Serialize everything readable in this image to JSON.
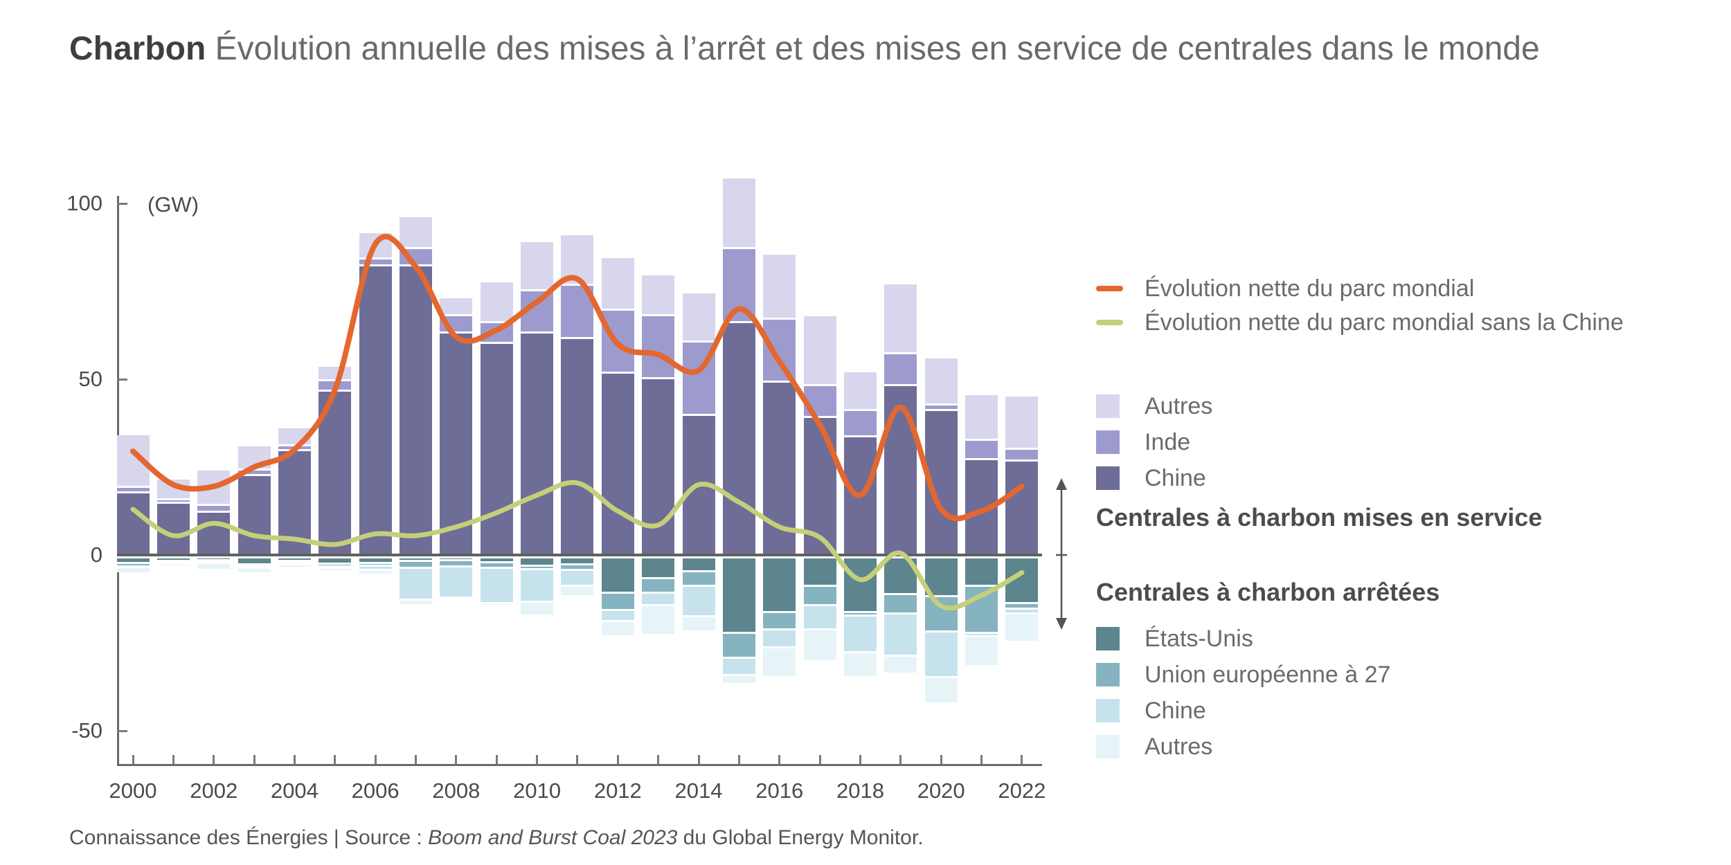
{
  "title": {
    "bold": "Charbon",
    "rest": " Évolution annuelle des mises à l’arrêt et des mises en service de centrales dans le monde"
  },
  "axis": {
    "unit_label": "(GW)",
    "y_ticks": [
      100,
      50,
      0,
      -50
    ],
    "x_label_years": [
      2000,
      2002,
      2004,
      2006,
      2008,
      2010,
      2012,
      2014,
      2016,
      2018,
      2020,
      2022
    ]
  },
  "legend_lines": [
    {
      "label": "Évolution nette du parc mondial",
      "color": "#e4672f"
    },
    {
      "label": "Évolution nette du parc mondial sans la Chine",
      "color": "#c5cf79"
    }
  ],
  "legend_service": {
    "heading": "Centrales à charbon mises en service",
    "items": [
      {
        "label": "Autres",
        "color": "#d7d6ed"
      },
      {
        "label": "Inde",
        "color": "#9d9bce"
      },
      {
        "label": "Chine",
        "color": "#6e6d97"
      }
    ]
  },
  "legend_arret": {
    "heading": "Centrales à charbon arrêtées",
    "items": [
      {
        "label": "États-Unis",
        "color": "#5c858e"
      },
      {
        "label": "Union européenne à 27",
        "color": "#85b3bf"
      },
      {
        "label": "Chine",
        "color": "#c6e3ed"
      },
      {
        "label": "Autres",
        "color": "#e6f4f8"
      }
    ]
  },
  "footer": {
    "prefix": "Connaissance des Énergies | Source : ",
    "source_italic": "Boom and Burst Coal 2023",
    "suffix": " du Global Energy Monitor."
  },
  "colors": {
    "service_chine": "#6e6d97",
    "service_inde": "#9d9bce",
    "service_autres": "#d7d6ed",
    "arret_etats_unis": "#5c858e",
    "arret_ue": "#85b3bf",
    "arret_chine": "#c6e3ed",
    "arret_autres": "#e6f4f8",
    "line_net_mondial": "#e4672f",
    "line_net_sans_chine": "#c5cf79",
    "zero_line": "#606060",
    "axis": "#6a6a6a",
    "arrow": "#555555"
  },
  "chart_data": {
    "type": "bar",
    "subtype": "stacked-diverging-with-lines",
    "unit": "GW",
    "ylim": [
      -60,
      110
    ],
    "years": [
      2000,
      2001,
      2002,
      2003,
      2004,
      2005,
      2006,
      2007,
      2008,
      2009,
      2010,
      2011,
      2012,
      2013,
      2014,
      2015,
      2016,
      2017,
      2018,
      2019,
      2020,
      2021,
      2022
    ],
    "series": [
      {
        "name": "Chine (mises en service)",
        "key": "service_chine",
        "stack": "positive",
        "values": [
          17.5,
          14.5,
          12,
          22.5,
          29.5,
          46.5,
          82,
          82,
          63,
          60,
          63,
          61.5,
          51.5,
          50,
          39.5,
          66,
          49,
          39,
          33.5,
          48,
          41,
          27,
          26.5
        ]
      },
      {
        "name": "Inde (mises en service)",
        "key": "service_inde",
        "stack": "positive",
        "values": [
          1.5,
          1,
          2,
          1.5,
          1.5,
          3,
          2,
          5,
          5,
          6,
          12,
          15,
          18,
          18,
          21,
          21,
          18,
          9,
          7.5,
          9,
          1.5,
          5.5,
          3.5
        ]
      },
      {
        "name": "Autres (mises en service)",
        "key": "service_autres",
        "stack": "positive",
        "values": [
          15,
          6,
          10,
          7,
          5,
          4,
          7.5,
          9,
          5,
          11.5,
          14,
          14.5,
          15,
          11.5,
          14,
          20,
          18.5,
          20,
          11,
          20,
          13.5,
          13,
          15
        ]
      },
      {
        "name": "États-Unis (arrêtées)",
        "key": "arret_etats_unis",
        "stack": "negative",
        "values": [
          1.5,
          1,
          0.8,
          2,
          1,
          1.8,
          1.5,
          1,
          0.8,
          1.3,
          2.4,
          2,
          10,
          6,
          4,
          21.5,
          15.5,
          8,
          15.5,
          10.5,
          11,
          8,
          13
        ]
      },
      {
        "name": "Union européenne à 27 (arrêtées)",
        "key": "arret_ue",
        "stack": "negative",
        "values": [
          1,
          0.4,
          0.4,
          0.6,
          0.6,
          0.8,
          0.8,
          2,
          1.7,
          1.7,
          1,
          1.5,
          5,
          4,
          4,
          7,
          5,
          5.5,
          1,
          5.5,
          10,
          13.5,
          1.5
        ]
      },
      {
        "name": "Chine (arrêtées)",
        "key": "arret_chine",
        "stack": "negative",
        "values": [
          0.3,
          0.3,
          0.3,
          0.4,
          0.4,
          0.4,
          1.2,
          9,
          9,
          10,
          9.2,
          4.6,
          3.2,
          3.6,
          8.7,
          5,
          5,
          7,
          10.5,
          12,
          13,
          1,
          1.5
        ]
      },
      {
        "name": "Autres (arrêtées)",
        "key": "arret_autres",
        "stack": "negative",
        "values": [
          1.7,
          0.8,
          2,
          1.5,
          1,
          1,
          1.5,
          1.5,
          0.5,
          0.7,
          4,
          3,
          4.3,
          8.4,
          4.3,
          2.5,
          8.5,
          9,
          7,
          5,
          7.5,
          8.5,
          8
        ]
      }
    ],
    "lines": [
      {
        "name": "Évolution nette du parc mondial",
        "key": "line_net_mondial",
        "values": [
          29.5,
          20,
          19.5,
          25,
          30,
          47,
          88.5,
          82,
          62,
          64,
          72,
          78.5,
          60,
          57,
          52.5,
          70,
          55,
          37,
          17,
          42,
          13,
          12.5,
          19.5
        ]
      },
      {
        "name": "Évolution nette du parc mondial sans la Chine",
        "key": "line_net_sans_chine",
        "values": [
          13,
          5.5,
          9,
          5.5,
          4.5,
          3,
          6,
          5.5,
          8,
          12,
          17,
          20.5,
          12.5,
          8.5,
          20,
          15,
          8,
          5,
          -7,
          0.5,
          -14.5,
          -11.5,
          -5
        ]
      }
    ],
    "annotations": {
      "upper_zone_label": "Centrales à charbon mises en service",
      "lower_zone_label": "Centrales à charbon arrêtées"
    }
  }
}
